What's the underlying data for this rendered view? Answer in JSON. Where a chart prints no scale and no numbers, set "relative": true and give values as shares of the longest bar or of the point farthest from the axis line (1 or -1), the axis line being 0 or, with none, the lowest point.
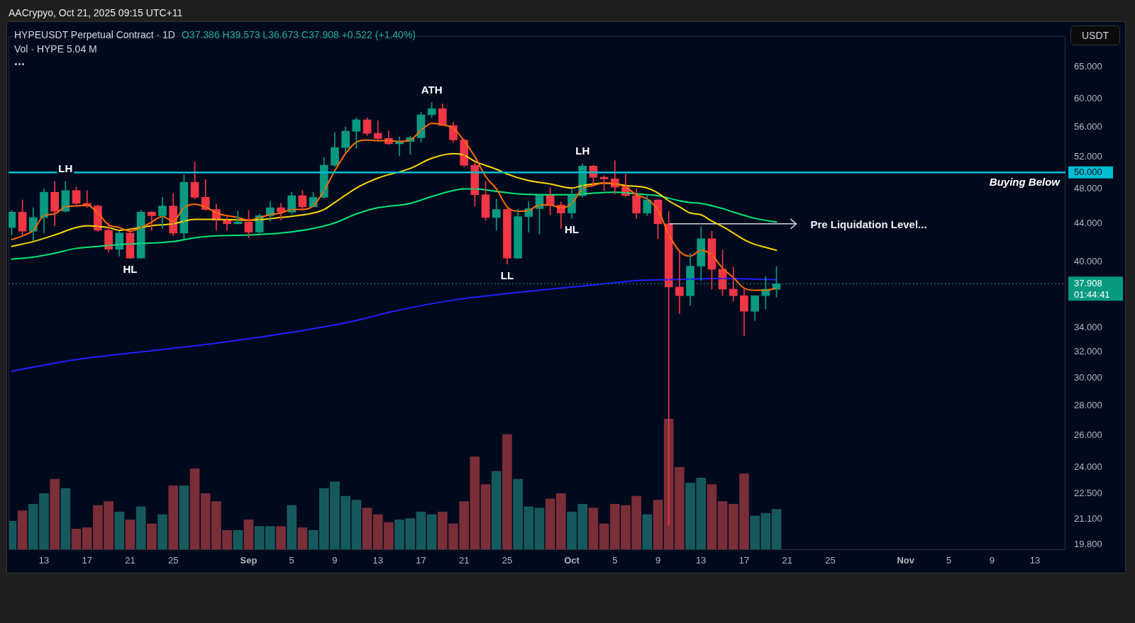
{
  "chart_data": [
    {
      "type": "candlestick",
      "title": "HYPEUSDT Perpetual Contract · 1D",
      "subtitle": "O37.386 H39.573 L36.673 C37.908 +0.522 (+1.40%)",
      "ylabel": "USDT",
      "log": true,
      "x": [
        "2025-08-10",
        "2025-08-11",
        "2025-08-12",
        "2025-08-13",
        "2025-08-14",
        "2025-08-15",
        "2025-08-16",
        "2025-08-17",
        "2025-08-18",
        "2025-08-19",
        "2025-08-20",
        "2025-08-21",
        "2025-08-22",
        "2025-08-23",
        "2025-08-24",
        "2025-08-25",
        "2025-08-26",
        "2025-08-27",
        "2025-08-28",
        "2025-08-29",
        "2025-08-30",
        "2025-08-31",
        "2025-09-01",
        "2025-09-02",
        "2025-09-03",
        "2025-09-04",
        "2025-09-05",
        "2025-09-06",
        "2025-09-07",
        "2025-09-08",
        "2025-09-09",
        "2025-09-10",
        "2025-09-11",
        "2025-09-12",
        "2025-09-13",
        "2025-09-14",
        "2025-09-15",
        "2025-09-16",
        "2025-09-17",
        "2025-09-18",
        "2025-09-19",
        "2025-09-20",
        "2025-09-21",
        "2025-09-22",
        "2025-09-23",
        "2025-09-24",
        "2025-09-25",
        "2025-09-26",
        "2025-09-27",
        "2025-09-28",
        "2025-09-29",
        "2025-09-30",
        "2025-10-01",
        "2025-10-02",
        "2025-10-03",
        "2025-10-04",
        "2025-10-05",
        "2025-10-06",
        "2025-10-07",
        "2025-10-08",
        "2025-10-09",
        "2025-10-10",
        "2025-10-11",
        "2025-10-12",
        "2025-10-13",
        "2025-10-14",
        "2025-10-15",
        "2025-10-16",
        "2025-10-17",
        "2025-10-18",
        "2025-10-19",
        "2025-10-20"
      ],
      "ohlc": [
        [
          43.6,
          45.5,
          42.8,
          45.3
        ],
        [
          45.3,
          46.7,
          42.6,
          43.2
        ],
        [
          43.2,
          45.8,
          42.2,
          44.7
        ],
        [
          44.7,
          48.0,
          43.0,
          47.6
        ],
        [
          47.6,
          48.9,
          43.8,
          45.4
        ],
        [
          45.4,
          48.9,
          45.3,
          47.8
        ],
        [
          47.8,
          48.2,
          46.1,
          46.3
        ],
        [
          46.3,
          47.8,
          45.8,
          46.0
        ],
        [
          46.0,
          46.1,
          43.2,
          43.3
        ],
        [
          43.3,
          44.1,
          41.0,
          41.3
        ],
        [
          41.3,
          43.2,
          40.6,
          43.0
        ],
        [
          43.0,
          43.4,
          40.4,
          40.4
        ],
        [
          40.4,
          45.5,
          40.4,
          45.3
        ],
        [
          45.3,
          45.4,
          43.3,
          44.9
        ],
        [
          44.9,
          47.0,
          43.5,
          46.0
        ],
        [
          46.0,
          47.4,
          42.7,
          43.0
        ],
        [
          43.0,
          49.7,
          42.4,
          48.8
        ],
        [
          48.8,
          51.3,
          46.8,
          47.0
        ],
        [
          47.0,
          49.1,
          45.5,
          45.6
        ],
        [
          45.6,
          46.2,
          43.3,
          44.4
        ],
        [
          44.4,
          44.8,
          43.3,
          44.0
        ],
        [
          44.0,
          45.4,
          44.0,
          44.2
        ],
        [
          44.2,
          45.5,
          42.5,
          43.1
        ],
        [
          43.1,
          45.1,
          43.0,
          44.9
        ],
        [
          44.9,
          46.5,
          44.3,
          45.8
        ],
        [
          45.8,
          46.3,
          44.4,
          45.3
        ],
        [
          45.3,
          47.6,
          45.1,
          47.2
        ],
        [
          47.2,
          47.8,
          45.5,
          45.9
        ],
        [
          45.9,
          47.6,
          45.9,
          47.0
        ],
        [
          47.0,
          51.9,
          46.9,
          50.9
        ],
        [
          50.9,
          55.2,
          50.7,
          53.2
        ],
        [
          53.2,
          56.0,
          52.6,
          55.4
        ],
        [
          55.4,
          57.3,
          53.1,
          57.0
        ],
        [
          57.0,
          57.3,
          54.8,
          55.1
        ],
        [
          55.1,
          56.9,
          54.2,
          54.4
        ],
        [
          54.4,
          55.4,
          53.6,
          53.7
        ],
        [
          53.7,
          54.6,
          52.1,
          54.0
        ],
        [
          54.0,
          54.7,
          52.3,
          54.5
        ],
        [
          54.5,
          58.1,
          53.9,
          57.7
        ],
        [
          57.7,
          59.5,
          57.3,
          58.6
        ],
        [
          58.6,
          59.3,
          56.2,
          56.2
        ],
        [
          56.2,
          56.7,
          53.9,
          54.2
        ],
        [
          54.2,
          54.3,
          50.7,
          50.9
        ],
        [
          50.9,
          51.2,
          46.0,
          47.3
        ],
        [
          47.3,
          48.9,
          44.4,
          44.7
        ],
        [
          44.7,
          46.8,
          43.3,
          45.6
        ],
        [
          45.6,
          45.7,
          39.8,
          40.4
        ],
        [
          40.4,
          45.6,
          40.4,
          44.8
        ],
        [
          44.8,
          46.5,
          43.1,
          45.7
        ],
        [
          45.7,
          47.4,
          42.9,
          47.3
        ],
        [
          47.3,
          48.1,
          45.0,
          46.1
        ],
        [
          46.1,
          46.5,
          43.5,
          45.2
        ],
        [
          45.2,
          48.0,
          44.6,
          47.2
        ],
        [
          47.2,
          51.1,
          47.0,
          50.8
        ],
        [
          50.8,
          50.9,
          48.4,
          49.4
        ],
        [
          49.4,
          49.6,
          47.8,
          49.2
        ],
        [
          49.2,
          51.5,
          47.4,
          48.2
        ],
        [
          48.2,
          49.8,
          47.1,
          47.2
        ],
        [
          47.2,
          48.0,
          44.6,
          45.2
        ],
        [
          45.2,
          47.3,
          44.9,
          46.7
        ],
        [
          46.7,
          46.7,
          42.4,
          44.0
        ],
        [
          44.0,
          45.4,
          20.8,
          37.6
        ],
        [
          37.6,
          41.0,
          35.2,
          36.8
        ],
        [
          36.8,
          40.9,
          35.9,
          39.6
        ],
        [
          39.6,
          43.7,
          38.2,
          42.4
        ],
        [
          42.4,
          43.2,
          37.4,
          39.3
        ],
        [
          39.3,
          41.2,
          36.8,
          37.4
        ],
        [
          37.4,
          39.5,
          36.3,
          36.8
        ],
        [
          36.8,
          37.5,
          33.3,
          35.4
        ],
        [
          35.4,
          36.8,
          34.6,
          36.8
        ],
        [
          36.8,
          38.6,
          35.6,
          37.4
        ],
        [
          37.386,
          39.573,
          36.673,
          37.908
        ]
      ],
      "colors": [
        "#089981",
        "#f23645",
        "#089981",
        "#089981",
        "#f23645",
        "#089981",
        "#f23645",
        "#f23645",
        "#f23645",
        "#f23645",
        "#089981",
        "#f23645",
        "#089981",
        "#f23645",
        "#089981",
        "#f23645",
        "#089981",
        "#f23645",
        "#f23645",
        "#f23645",
        "#f23645",
        "#089981",
        "#f23645",
        "#089981",
        "#089981",
        "#f23645",
        "#089981",
        "#f23645",
        "#089981",
        "#089981",
        "#089981",
        "#089981",
        "#089981",
        "#f23645",
        "#f23645",
        "#f23645",
        "#089981",
        "#089981",
        "#089981",
        "#089981",
        "#f23645",
        "#f23645",
        "#f23645",
        "#f23645",
        "#f23645",
        "#089981",
        "#f23645",
        "#089981",
        "#089981",
        "#089981",
        "#f23645",
        "#f23645",
        "#089981",
        "#089981",
        "#f23645",
        "#f23645",
        "#f23645",
        "#f23645",
        "#f23645",
        "#089981",
        "#f23645",
        "#f23645",
        "#f23645",
        "#089981",
        "#089981",
        "#f23645",
        "#f23645",
        "#f23645",
        "#f23645",
        "#089981",
        "#089981",
        "#089981"
      ],
      "series": [
        {
          "type": "line",
          "color": "#ff6d00",
          "values": [
            42.3,
            42.7,
            43.3,
            44.9,
            45.1,
            45.9,
            46.0,
            46.1,
            45.2,
            43.9,
            43.6,
            43.2,
            43.6,
            44.2,
            44.8,
            44.3,
            45.8,
            46.2,
            45.9,
            45.2,
            44.9,
            44.7,
            44.4,
            44.7,
            45.0,
            45.2,
            45.6,
            45.6,
            46.0,
            47.8,
            50.2,
            52.4,
            53.9,
            54.2,
            54.1,
            54.1,
            54.0,
            54.2,
            55.5,
            56.5,
            56.3,
            55.8,
            54.1,
            52.0,
            49.5,
            48.0,
            45.9,
            45.4,
            45.5,
            46.1,
            46.1,
            45.8,
            46.3,
            48.0,
            48.4,
            48.7,
            48.6,
            48.2,
            47.3,
            46.8,
            45.5,
            42.9,
            41.1,
            40.6,
            41.2,
            40.7,
            39.4,
            38.5,
            37.5,
            37.3,
            37.3,
            37.5
          ]
        },
        {
          "type": "line",
          "color": "#ffd600",
          "x": [
            "2025-08-10",
            "2025-08-12",
            "2025-08-14",
            "2025-08-16",
            "2025-08-17",
            "2025-08-19",
            "2025-08-20",
            "2025-08-23",
            "2025-08-25",
            "2025-08-27",
            "2025-08-29",
            "2025-09-01",
            "2025-09-04",
            "2025-09-07",
            "2025-09-08",
            "2025-09-09",
            "2025-09-11",
            "2025-09-13",
            "2025-09-16",
            "2025-09-18",
            "2025-09-20",
            "2025-09-21",
            "2025-09-22",
            "2025-09-24",
            "2025-09-25",
            "2025-09-27",
            "2025-09-29",
            "2025-10-01",
            "2025-10-02",
            "2025-10-04",
            "2025-10-06",
            "2025-10-08",
            "2025-10-09",
            "2025-10-10",
            "2025-10-11",
            "2025-10-12",
            "2025-10-13",
            "2025-10-14",
            "2025-10-15",
            "2025-10-16",
            "2025-10-17",
            "2025-10-18",
            "2025-10-19",
            "2025-10-20"
          ],
          "values": [
            41.6,
            42.1,
            42.8,
            43.6,
            43.8,
            43.6,
            43.3,
            43.8,
            44.0,
            44.5,
            44.5,
            44.4,
            44.7,
            45.2,
            45.6,
            46.4,
            48.1,
            49.3,
            50.5,
            51.8,
            52.4,
            52.2,
            51.4,
            50.4,
            49.8,
            49.0,
            48.6,
            48.1,
            48.4,
            48.7,
            48.4,
            48.1,
            47.5,
            46.6,
            45.9,
            45.2,
            45.0,
            44.3,
            43.7,
            43.0,
            42.3,
            41.8,
            41.5,
            41.2
          ]
        },
        {
          "type": "line",
          "color": "#00e676",
          "x": [
            "2025-08-10",
            "2025-08-12",
            "2025-08-14",
            "2025-08-16",
            "2025-08-18",
            "2025-08-20",
            "2025-08-22",
            "2025-08-25",
            "2025-08-27",
            "2025-08-29",
            "2025-09-01",
            "2025-09-04",
            "2025-09-07",
            "2025-09-09",
            "2025-09-11",
            "2025-09-13",
            "2025-09-16",
            "2025-09-18",
            "2025-09-20",
            "2025-09-21",
            "2025-09-22",
            "2025-09-24",
            "2025-09-26",
            "2025-09-29",
            "2025-10-01",
            "2025-10-03",
            "2025-10-05",
            "2025-10-07",
            "2025-10-09",
            "2025-10-10",
            "2025-10-11",
            "2025-10-12",
            "2025-10-13",
            "2025-10-15",
            "2025-10-16",
            "2025-10-18",
            "2025-10-20"
          ],
          "values": [
            40.3,
            40.5,
            40.9,
            41.4,
            41.6,
            41.8,
            41.9,
            42.1,
            42.5,
            42.7,
            42.8,
            43.0,
            43.5,
            44.1,
            45.1,
            45.8,
            46.3,
            47.1,
            47.8,
            48.0,
            48.0,
            47.7,
            47.4,
            47.3,
            47.3,
            47.5,
            47.6,
            47.4,
            47.2,
            46.9,
            46.6,
            46.4,
            46.3,
            45.7,
            45.3,
            44.6,
            44.2
          ]
        },
        {
          "type": "line",
          "color": "#1f1fff",
          "x": [
            "2025-08-10",
            "2025-08-16",
            "2025-08-22",
            "2025-08-29",
            "2025-09-05",
            "2025-09-11",
            "2025-09-14",
            "2025-09-20",
            "2025-09-27",
            "2025-10-03",
            "2025-10-07",
            "2025-10-10",
            "2025-10-15",
            "2025-10-20"
          ],
          "values": [
            30.5,
            31.4,
            32.0,
            32.7,
            33.6,
            34.6,
            35.3,
            36.4,
            37.2,
            37.8,
            38.2,
            38.3,
            38.4,
            38.3
          ]
        },
        {
          "type": "line",
          "name": "Pre Liquidation Level...",
          "color": "#d1d4dc",
          "x": [
            "2025-10-10",
            "2025-10-21T20:00"
          ],
          "values": [
            44,
            44
          ]
        }
      ],
      "xlim": [
        "2025-08-09T17:00",
        "2025-11-15T20:00"
      ],
      "xticks": [
        {
          "value": "2025-08-13",
          "label": "13"
        },
        {
          "value": "2025-08-17",
          "label": "17"
        },
        {
          "value": "2025-08-21",
          "label": "21"
        },
        {
          "value": "2025-08-25",
          "label": "25"
        },
        {
          "value": "2025-09-01",
          "label": "Sep"
        },
        {
          "value": "2025-09-05",
          "label": "5"
        },
        {
          "value": "2025-09-09",
          "label": "9"
        },
        {
          "value": "2025-09-13",
          "label": "13"
        },
        {
          "value": "2025-09-17",
          "label": "17"
        },
        {
          "value": "2025-09-21",
          "label": "21"
        },
        {
          "value": "2025-09-25",
          "label": "25"
        },
        {
          "value": "2025-10-01",
          "label": "Oct"
        },
        {
          "value": "2025-10-05",
          "label": "5"
        },
        {
          "value": "2025-10-09",
          "label": "9"
        },
        {
          "value": "2025-10-13",
          "label": "13"
        },
        {
          "value": "2025-10-17",
          "label": "17"
        },
        {
          "value": "2025-10-21",
          "label": "21"
        },
        {
          "value": "2025-10-25",
          "label": "25"
        },
        {
          "value": "2025-11-01",
          "label": "Nov"
        },
        {
          "value": "2025-11-05",
          "label": "5"
        },
        {
          "value": "2025-11-09",
          "label": "9"
        },
        {
          "value": "2025-11-13",
          "label": "13"
        }
      ],
      "ylim": [
        19.55,
        70.2
      ],
      "yticks": [
        {
          "value": 19.8,
          "label": "19.800"
        },
        {
          "value": 21.1,
          "label": "21.100"
        },
        {
          "value": 22.5,
          "label": "22.500"
        },
        {
          "value": 24,
          "label": "24.000"
        },
        {
          "value": 26,
          "label": "26.000"
        },
        {
          "value": 28,
          "label": "28.000"
        },
        {
          "value": 30,
          "label": "30.000"
        },
        {
          "value": 32,
          "label": "32.000"
        },
        {
          "value": 34,
          "label": "34.000"
        },
        {
          "value": 37.908,
          "label": "37.908"
        },
        {
          "value": 40,
          "label": "40.000"
        },
        {
          "value": 44,
          "label": "44.000"
        },
        {
          "value": 48,
          "label": "48.000"
        },
        {
          "value": 50,
          "label": "50.000"
        },
        {
          "value": 52,
          "label": "52.000"
        },
        {
          "value": 56,
          "label": "56.000"
        },
        {
          "value": 60,
          "label": "60.000"
        },
        {
          "value": 65,
          "label": "65.000"
        }
      ],
      "ref_lines": [
        {
          "axis": "y",
          "value": 50,
          "label": "Buying Below",
          "color": "#00bcd4",
          "line_style": "solid"
        },
        {
          "axis": "y",
          "value": 37.908,
          "color": "#089981",
          "line_style": "dotted"
        }
      ],
      "annotations": [
        "AACrypyo, Oct 21, 2025 09:15 UTC+11",
        "Vol · HYPE 5.04 M",
        "01:44:41",
        {
          "text": "LH",
          "x": "2025-08-15",
          "y": 48.9
        },
        {
          "text": "HL",
          "x": "2025-08-21",
          "y": 40.4
        },
        {
          "text": "ATH",
          "x": "2025-09-18",
          "y": 59.5
        },
        {
          "text": "LL",
          "x": "2025-09-25",
          "y": 39.8
        },
        {
          "text": "LH",
          "x": "2025-10-02",
          "y": 51.1
        },
        {
          "text": "HL",
          "x": "2025-10-01",
          "y": 44.6
        }
      ]
    },
    {
      "type": "bar",
      "relative": true,
      "tick_labels": false,
      "x": [
        "2025-08-10",
        "2025-08-11",
        "2025-08-12",
        "2025-08-13",
        "2025-08-14",
        "2025-08-15",
        "2025-08-16",
        "2025-08-17",
        "2025-08-18",
        "2025-08-19",
        "2025-08-20",
        "2025-08-21",
        "2025-08-22",
        "2025-08-23",
        "2025-08-24",
        "2025-08-25",
        "2025-08-26",
        "2025-08-27",
        "2025-08-28",
        "2025-08-29",
        "2025-08-30",
        "2025-08-31",
        "2025-09-01",
        "2025-09-02",
        "2025-09-03",
        "2025-09-04",
        "2025-09-05",
        "2025-09-06",
        "2025-09-07",
        "2025-09-08",
        "2025-09-09",
        "2025-09-10",
        "2025-09-11",
        "2025-09-12",
        "2025-09-13",
        "2025-09-14",
        "2025-09-15",
        "2025-09-16",
        "2025-09-17",
        "2025-09-18",
        "2025-09-19",
        "2025-09-20",
        "2025-09-21",
        "2025-09-22",
        "2025-09-23",
        "2025-09-24",
        "2025-09-25",
        "2025-09-26",
        "2025-09-27",
        "2025-09-28",
        "2025-09-29",
        "2025-09-30",
        "2025-10-01",
        "2025-10-02",
        "2025-10-03",
        "2025-10-04",
        "2025-10-05",
        "2025-10-06",
        "2025-10-07",
        "2025-10-08",
        "2025-10-09",
        "2025-10-10",
        "2025-10-11",
        "2025-10-12",
        "2025-10-13",
        "2025-10-14",
        "2025-10-15",
        "2025-10-16",
        "2025-10-17",
        "2025-10-18",
        "2025-10-19",
        "2025-10-20"
      ],
      "xlim": [
        "2025-08-09T17:00",
        "2025-11-15T20:00"
      ],
      "values": [
        0.22,
        0.3,
        0.35,
        0.43,
        0.54,
        0.47,
        0.16,
        0.17,
        0.34,
        0.37,
        0.29,
        0.23,
        0.33,
        0.2,
        0.27,
        0.49,
        0.49,
        0.62,
        0.43,
        0.37,
        0.15,
        0.15,
        0.23,
        0.18,
        0.18,
        0.18,
        0.34,
        0.17,
        0.15,
        0.47,
        0.52,
        0.41,
        0.38,
        0.32,
        0.27,
        0.21,
        0.23,
        0.24,
        0.29,
        0.27,
        0.29,
        0.2,
        0.37,
        0.71,
        0.5,
        0.6,
        0.88,
        0.54,
        0.33,
        0.32,
        0.39,
        0.43,
        0.29,
        0.35,
        0.32,
        0.2,
        0.35,
        0.34,
        0.41,
        0.27,
        0.38,
        1,
        0.63,
        0.51,
        0.55,
        0.5,
        0.37,
        0.35,
        0.58,
        0.26,
        0.28,
        0.31
      ],
      "colors": [
        "#16595c",
        "#7a2e38",
        "#16595c",
        "#16595c",
        "#7a2e38",
        "#16595c",
        "#7a2e38",
        "#7a2e38",
        "#7a2e38",
        "#7a2e38",
        "#16595c",
        "#7a2e38",
        "#16595c",
        "#7a2e38",
        "#16595c",
        "#7a2e38",
        "#16595c",
        "#7a2e38",
        "#7a2e38",
        "#7a2e38",
        "#7a2e38",
        "#16595c",
        "#7a2e38",
        "#16595c",
        "#16595c",
        "#7a2e38",
        "#16595c",
        "#7a2e38",
        "#16595c",
        "#16595c",
        "#16595c",
        "#16595c",
        "#16595c",
        "#7a2e38",
        "#7a2e38",
        "#7a2e38",
        "#16595c",
        "#16595c",
        "#16595c",
        "#16595c",
        "#7a2e38",
        "#7a2e38",
        "#7a2e38",
        "#7a2e38",
        "#7a2e38",
        "#16595c",
        "#7a2e38",
        "#16595c",
        "#16595c",
        "#16595c",
        "#7a2e38",
        "#7a2e38",
        "#16595c",
        "#16595c",
        "#7a2e38",
        "#7a2e38",
        "#7a2e38",
        "#7a2e38",
        "#7a2e38",
        "#16595c",
        "#7a2e38",
        "#7a2e38",
        "#7a2e38",
        "#16595c",
        "#16595c",
        "#7a2e38",
        "#7a2e38",
        "#7a2e38",
        "#7a2e38",
        "#16595c",
        "#16595c",
        "#16595c"
      ]
    }
  ]
}
